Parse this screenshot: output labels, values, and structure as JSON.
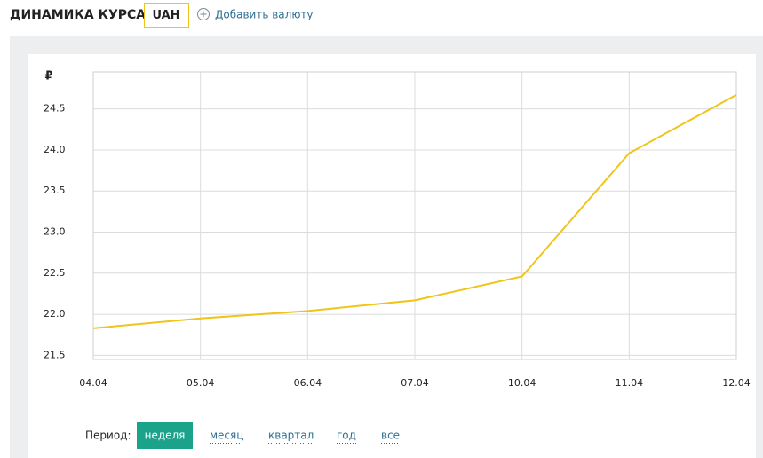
{
  "header": {
    "title": "ДИНАМИКА КУРСА:",
    "currency": "UAH",
    "add_button": "Добавить валюту"
  },
  "chart_data": {
    "type": "line",
    "y_label": "₽",
    "categories": [
      "04.04",
      "05.04",
      "06.04",
      "07.04",
      "10.04",
      "11.04",
      "12.04"
    ],
    "series": [
      {
        "name": "UAH",
        "color": "#f0c419",
        "values": [
          21.83,
          21.95,
          22.04,
          22.17,
          22.46,
          23.96,
          24.67
        ]
      }
    ],
    "ylim": [
      21.45,
      24.95
    ],
    "yticks": [
      21.5,
      {
        "value": 22,
        "label": "22.0"
      },
      22.5,
      {
        "value": 23,
        "label": "23.0"
      },
      23.5,
      {
        "value": 24,
        "label": "24.0"
      },
      24.5
    ],
    "grid": true
  },
  "period": {
    "label": "Период:",
    "options": [
      "неделя",
      "месяц",
      "квартал",
      "год",
      "все"
    ],
    "active": 0
  }
}
